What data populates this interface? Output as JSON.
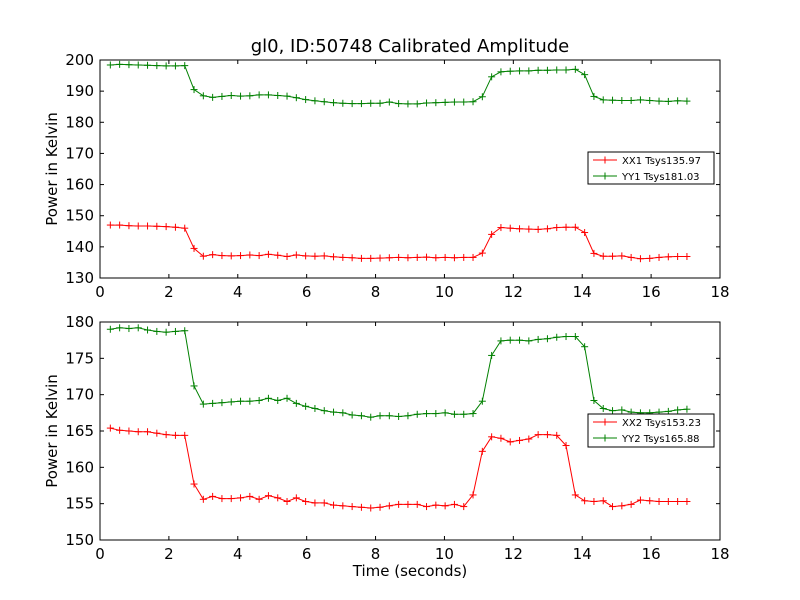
{
  "chart_data": [
    {
      "type": "line",
      "title": "gl0, ID:50748 Calibrated Amplitude",
      "xlabel": "",
      "ylabel": "Power in Kelvin",
      "xlim": [
        0,
        18
      ],
      "ylim": [
        130,
        200
      ],
      "xticks": [
        0,
        2,
        4,
        6,
        8,
        10,
        12,
        14,
        16,
        18
      ],
      "yticks": [
        130,
        140,
        150,
        160,
        170,
        180,
        190,
        200
      ],
      "grid": false,
      "legend_position": "center-right",
      "x": [
        0.3,
        0.57,
        0.84,
        1.11,
        1.38,
        1.65,
        1.92,
        2.19,
        2.46,
        2.73,
        3.0,
        3.27,
        3.54,
        3.81,
        4.08,
        4.35,
        4.62,
        4.89,
        5.16,
        5.43,
        5.7,
        5.97,
        6.24,
        6.51,
        6.78,
        7.05,
        7.32,
        7.59,
        7.86,
        8.13,
        8.4,
        8.67,
        8.94,
        9.21,
        9.48,
        9.75,
        10.02,
        10.29,
        10.56,
        10.83,
        11.1,
        11.37,
        11.64,
        11.91,
        12.18,
        12.45,
        12.72,
        12.99,
        13.26,
        13.53,
        13.8,
        14.07,
        14.34,
        14.61,
        14.88,
        15.15,
        15.42,
        15.69,
        15.96,
        16.23,
        16.5,
        16.77,
        17.04
      ],
      "series": [
        {
          "name": "XX1 Tsys135.97",
          "color": "#ff0000",
          "values": [
            147,
            147,
            146.8,
            146.7,
            146.7,
            146.6,
            146.5,
            146.3,
            146,
            139.5,
            137,
            137.5,
            137.2,
            137.1,
            137.2,
            137.4,
            137.2,
            137.6,
            137.3,
            136.9,
            137.4,
            137.1,
            137,
            137.1,
            136.8,
            136.6,
            136.5,
            136.3,
            136.3,
            136.4,
            136.5,
            136.6,
            136.5,
            136.6,
            136.7,
            136.5,
            136.6,
            136.5,
            136.6,
            136.6,
            138,
            144,
            146.2,
            146,
            145.8,
            145.7,
            145.6,
            145.8,
            146.2,
            146.3,
            146.3,
            144.6,
            137.9,
            137,
            137,
            137.1,
            136.6,
            136.2,
            136.3,
            136.6,
            136.8,
            136.9,
            136.9
          ]
        },
        {
          "name": "YY1 Tsys181.03",
          "color": "#008000",
          "values": [
            198.4,
            198.6,
            198.5,
            198.4,
            198.3,
            198.2,
            198.1,
            198.1,
            198.2,
            190.5,
            188.5,
            188,
            188.3,
            188.6,
            188.4,
            188.5,
            188.8,
            188.8,
            188.6,
            188.4,
            187.9,
            187.3,
            186.9,
            186.6,
            186.3,
            186.1,
            186,
            186,
            186.1,
            186.1,
            186.5,
            186,
            185.9,
            185.9,
            186.2,
            186.3,
            186.4,
            186.5,
            186.5,
            186.6,
            188.2,
            194.6,
            196.2,
            196.4,
            196.5,
            196.5,
            196.7,
            196.7,
            196.8,
            196.8,
            197,
            195.3,
            188.3,
            187.2,
            187.1,
            187,
            187,
            187.2,
            187,
            186.8,
            186.7,
            186.9,
            186.8
          ]
        }
      ]
    },
    {
      "type": "line",
      "title": "",
      "xlabel": "Time (seconds)",
      "ylabel": "Power in Kelvin",
      "xlim": [
        0,
        18
      ],
      "ylim": [
        150,
        180
      ],
      "xticks": [
        0,
        2,
        4,
        6,
        8,
        10,
        12,
        14,
        16,
        18
      ],
      "yticks": [
        150,
        155,
        160,
        165,
        170,
        175,
        180
      ],
      "grid": false,
      "legend_position": "center-right",
      "x": [
        0.3,
        0.57,
        0.84,
        1.11,
        1.38,
        1.65,
        1.92,
        2.19,
        2.46,
        2.73,
        3.0,
        3.27,
        3.54,
        3.81,
        4.08,
        4.35,
        4.62,
        4.89,
        5.16,
        5.43,
        5.7,
        5.97,
        6.24,
        6.51,
        6.78,
        7.05,
        7.32,
        7.59,
        7.86,
        8.13,
        8.4,
        8.67,
        8.94,
        9.21,
        9.48,
        9.75,
        10.02,
        10.29,
        10.56,
        10.83,
        11.1,
        11.37,
        11.64,
        11.91,
        12.18,
        12.45,
        12.72,
        12.99,
        13.26,
        13.53,
        13.8,
        14.07,
        14.34,
        14.61,
        14.88,
        15.15,
        15.42,
        15.69,
        15.96,
        16.23,
        16.5,
        16.77,
        17.04
      ],
      "series": [
        {
          "name": "XX2 Tsys153.23",
          "color": "#ff0000",
          "values": [
            165.4,
            165.1,
            165.0,
            164.9,
            164.9,
            164.7,
            164.5,
            164.4,
            164.4,
            157.7,
            155.6,
            156,
            155.7,
            155.7,
            155.8,
            156,
            155.6,
            156.1,
            155.8,
            155.3,
            155.8,
            155.3,
            155.1,
            155.1,
            154.8,
            154.7,
            154.6,
            154.5,
            154.4,
            154.5,
            154.7,
            154.9,
            154.9,
            154.9,
            154.6,
            154.8,
            154.7,
            154.9,
            154.6,
            156.2,
            162.2,
            164.2,
            164.0,
            163.5,
            163.7,
            163.9,
            164.5,
            164.5,
            164.4,
            163,
            156.2,
            155.4,
            155.3,
            155.4,
            154.6,
            154.7,
            154.9,
            155.5,
            155.4,
            155.3,
            155.3,
            155.3,
            155.3
          ]
        },
        {
          "name": "YY2 Tsys165.88",
          "color": "#008000",
          "values": [
            179,
            179.2,
            179.1,
            179.2,
            178.9,
            178.7,
            178.6,
            178.7,
            178.8,
            171.2,
            168.7,
            168.8,
            168.9,
            169,
            169.1,
            169.1,
            169.2,
            169.5,
            169.2,
            169.5,
            168.8,
            168.4,
            168.1,
            167.8,
            167.6,
            167.5,
            167.2,
            167.1,
            166.9,
            167.1,
            167.1,
            167,
            167.1,
            167.3,
            167.4,
            167.4,
            167.5,
            167.3,
            167.3,
            167.4,
            169.1,
            175.4,
            177.4,
            177.5,
            177.5,
            177.4,
            177.6,
            177.7,
            177.9,
            178.0,
            178.0,
            176.6,
            169.2,
            168.1,
            167.8,
            167.9,
            167.6,
            167.5,
            167.5,
            167.6,
            167.7,
            167.9,
            168
          ]
        }
      ]
    }
  ]
}
